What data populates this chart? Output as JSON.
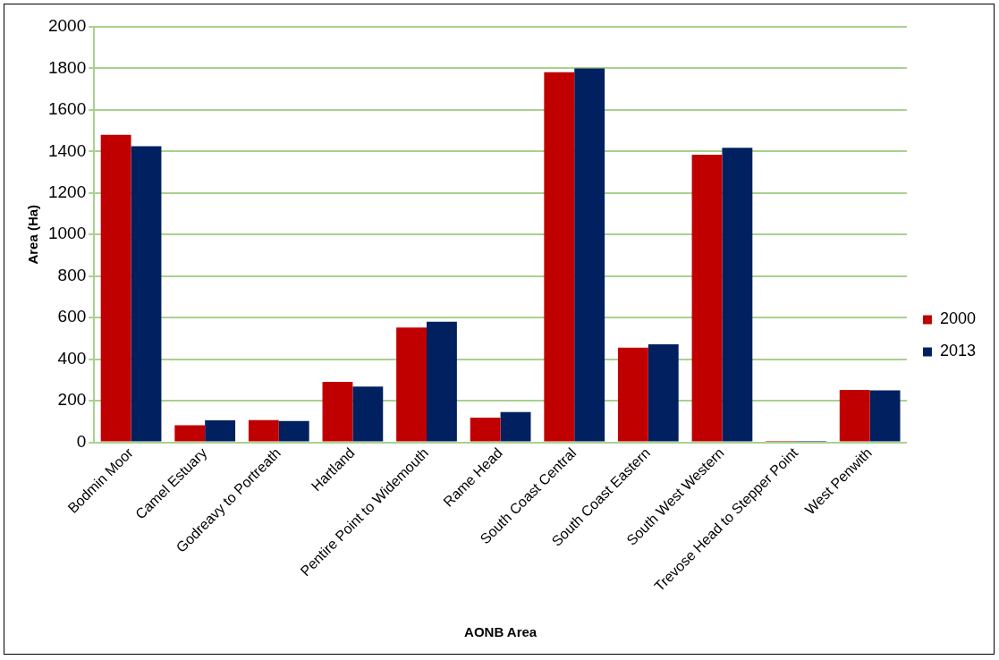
{
  "chart_data": {
    "type": "bar",
    "xlabel": "AONB Area",
    "ylabel": "Area (Ha)",
    "categories": [
      "Bodmin Moor",
      "Camel Estuary",
      "Godreavy to Portreath",
      "Hartland",
      "Pentire Point to Widemouth",
      "Rame Head",
      "South Coast Central",
      "South Coast Eastern",
      "South West Western",
      "Trevose Head to Stepper Point",
      "West Penwith"
    ],
    "series": [
      {
        "name": "2000",
        "color": "#c00000",
        "values": [
          1480,
          82,
          107,
          291,
          552,
          118,
          1782,
          455,
          1384,
          7,
          252
        ]
      },
      {
        "name": "2013",
        "color": "#002060",
        "values": [
          1425,
          105,
          102,
          268,
          580,
          145,
          1800,
          471,
          1418,
          7,
          250
        ]
      }
    ],
    "ylim": [
      0,
      2000
    ],
    "yticks": [
      0,
      200,
      400,
      600,
      800,
      1000,
      1200,
      1400,
      1600,
      1800,
      2000
    ],
    "grid": "y",
    "legend": "right"
  }
}
